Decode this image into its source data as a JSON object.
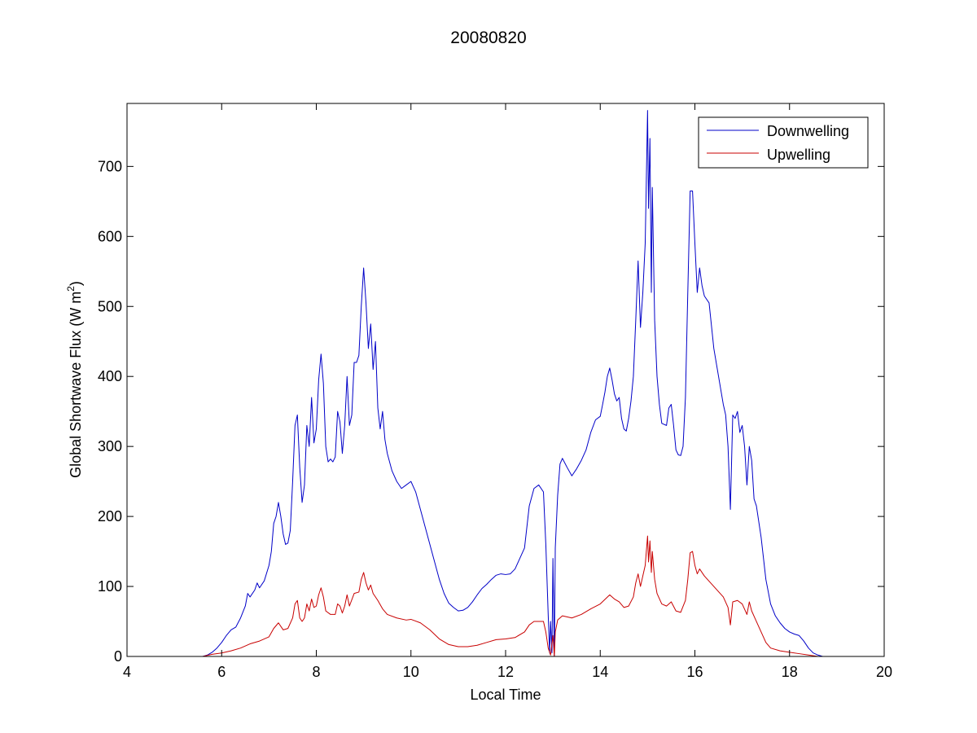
{
  "chart_data": {
    "type": "line",
    "title": "20080820",
    "xlabel": "Local Time",
    "ylabel_main": "Global Shortwave Flux (W m",
    "ylabel_sup": "2",
    "ylabel_close": ")",
    "xlim": [
      4,
      20
    ],
    "ylim": [
      0,
      790
    ],
    "xticks": [
      4,
      6,
      8,
      10,
      12,
      14,
      16,
      18,
      20
    ],
    "yticks": [
      0,
      100,
      200,
      300,
      400,
      500,
      600,
      700
    ],
    "grid": false,
    "legend_position": "top-right",
    "series": [
      {
        "name": "Downwelling",
        "color": "#0000c8",
        "points": [
          [
            4.2,
            0
          ],
          [
            5.6,
            0
          ],
          [
            5.7,
            2
          ],
          [
            5.8,
            6
          ],
          [
            5.9,
            12
          ],
          [
            6.0,
            20
          ],
          [
            6.1,
            30
          ],
          [
            6.2,
            38
          ],
          [
            6.3,
            42
          ],
          [
            6.4,
            55
          ],
          [
            6.5,
            72
          ],
          [
            6.55,
            90
          ],
          [
            6.6,
            85
          ],
          [
            6.7,
            95
          ],
          [
            6.75,
            105
          ],
          [
            6.8,
            98
          ],
          [
            6.9,
            108
          ],
          [
            7.0,
            130
          ],
          [
            7.05,
            150
          ],
          [
            7.1,
            190
          ],
          [
            7.15,
            200
          ],
          [
            7.2,
            220
          ],
          [
            7.25,
            200
          ],
          [
            7.3,
            175
          ],
          [
            7.35,
            160
          ],
          [
            7.4,
            162
          ],
          [
            7.45,
            180
          ],
          [
            7.5,
            250
          ],
          [
            7.55,
            330
          ],
          [
            7.6,
            345
          ],
          [
            7.65,
            270
          ],
          [
            7.7,
            220
          ],
          [
            7.75,
            245
          ],
          [
            7.8,
            330
          ],
          [
            7.85,
            300
          ],
          [
            7.9,
            370
          ],
          [
            7.95,
            305
          ],
          [
            8.0,
            325
          ],
          [
            8.05,
            395
          ],
          [
            8.1,
            432
          ],
          [
            8.15,
            390
          ],
          [
            8.2,
            300
          ],
          [
            8.25,
            278
          ],
          [
            8.3,
            282
          ],
          [
            8.35,
            278
          ],
          [
            8.4,
            285
          ],
          [
            8.45,
            350
          ],
          [
            8.5,
            335
          ],
          [
            8.55,
            290
          ],
          [
            8.6,
            330
          ],
          [
            8.65,
            400
          ],
          [
            8.7,
            330
          ],
          [
            8.75,
            345
          ],
          [
            8.8,
            420
          ],
          [
            8.85,
            420
          ],
          [
            8.9,
            430
          ],
          [
            8.95,
            500
          ],
          [
            9.0,
            555
          ],
          [
            9.05,
            505
          ],
          [
            9.1,
            440
          ],
          [
            9.15,
            475
          ],
          [
            9.2,
            410
          ],
          [
            9.25,
            450
          ],
          [
            9.3,
            355
          ],
          [
            9.35,
            325
          ],
          [
            9.4,
            350
          ],
          [
            9.45,
            310
          ],
          [
            9.5,
            290
          ],
          [
            9.6,
            265
          ],
          [
            9.7,
            250
          ],
          [
            9.8,
            240
          ],
          [
            9.9,
            245
          ],
          [
            10.0,
            250
          ],
          [
            10.1,
            235
          ],
          [
            10.2,
            210
          ],
          [
            10.3,
            185
          ],
          [
            10.4,
            160
          ],
          [
            10.5,
            135
          ],
          [
            10.6,
            110
          ],
          [
            10.7,
            90
          ],
          [
            10.8,
            76
          ],
          [
            10.9,
            70
          ],
          [
            11.0,
            65
          ],
          [
            11.1,
            66
          ],
          [
            11.2,
            70
          ],
          [
            11.3,
            78
          ],
          [
            11.4,
            88
          ],
          [
            11.5,
            97
          ],
          [
            11.6,
            103
          ],
          [
            11.7,
            110
          ],
          [
            11.8,
            116
          ],
          [
            11.9,
            118
          ],
          [
            12.0,
            117
          ],
          [
            12.1,
            118
          ],
          [
            12.2,
            125
          ],
          [
            12.3,
            140
          ],
          [
            12.4,
            155
          ],
          [
            12.5,
            215
          ],
          [
            12.6,
            240
          ],
          [
            12.7,
            245
          ],
          [
            12.8,
            235
          ],
          [
            12.85,
            160
          ],
          [
            12.9,
            60
          ],
          [
            12.93,
            5
          ],
          [
            12.95,
            50
          ],
          [
            12.98,
            5
          ],
          [
            13.0,
            140
          ],
          [
            13.03,
            0
          ],
          [
            13.05,
            155
          ],
          [
            13.1,
            230
          ],
          [
            13.15,
            275
          ],
          [
            13.2,
            283
          ],
          [
            13.3,
            270
          ],
          [
            13.4,
            258
          ],
          [
            13.5,
            268
          ],
          [
            13.6,
            280
          ],
          [
            13.7,
            295
          ],
          [
            13.8,
            320
          ],
          [
            13.9,
            338
          ],
          [
            14.0,
            343
          ],
          [
            14.05,
            360
          ],
          [
            14.1,
            378
          ],
          [
            14.15,
            400
          ],
          [
            14.2,
            412
          ],
          [
            14.25,
            395
          ],
          [
            14.3,
            375
          ],
          [
            14.35,
            365
          ],
          [
            14.4,
            370
          ],
          [
            14.45,
            340
          ],
          [
            14.5,
            325
          ],
          [
            14.55,
            322
          ],
          [
            14.6,
            340
          ],
          [
            14.65,
            365
          ],
          [
            14.7,
            400
          ],
          [
            14.75,
            480
          ],
          [
            14.8,
            565
          ],
          [
            14.85,
            470
          ],
          [
            14.9,
            520
          ],
          [
            14.95,
            590
          ],
          [
            15.0,
            780
          ],
          [
            15.02,
            640
          ],
          [
            15.05,
            740
          ],
          [
            15.08,
            520
          ],
          [
            15.1,
            670
          ],
          [
            15.15,
            480
          ],
          [
            15.2,
            400
          ],
          [
            15.25,
            360
          ],
          [
            15.3,
            333
          ],
          [
            15.4,
            330
          ],
          [
            15.45,
            355
          ],
          [
            15.5,
            360
          ],
          [
            15.55,
            330
          ],
          [
            15.6,
            295
          ],
          [
            15.65,
            288
          ],
          [
            15.7,
            287
          ],
          [
            15.75,
            300
          ],
          [
            15.8,
            370
          ],
          [
            15.85,
            520
          ],
          [
            15.9,
            665
          ],
          [
            15.95,
            665
          ],
          [
            16.0,
            590
          ],
          [
            16.05,
            520
          ],
          [
            16.1,
            555
          ],
          [
            16.15,
            530
          ],
          [
            16.2,
            515
          ],
          [
            16.3,
            505
          ],
          [
            16.4,
            440
          ],
          [
            16.5,
            400
          ],
          [
            16.6,
            360
          ],
          [
            16.65,
            345
          ],
          [
            16.7,
            300
          ],
          [
            16.75,
            210
          ],
          [
            16.8,
            345
          ],
          [
            16.85,
            340
          ],
          [
            16.9,
            350
          ],
          [
            16.95,
            320
          ],
          [
            17.0,
            330
          ],
          [
            17.05,
            300
          ],
          [
            17.1,
            245
          ],
          [
            17.15,
            300
          ],
          [
            17.2,
            280
          ],
          [
            17.25,
            225
          ],
          [
            17.3,
            215
          ],
          [
            17.4,
            170
          ],
          [
            17.5,
            110
          ],
          [
            17.6,
            75
          ],
          [
            17.7,
            58
          ],
          [
            17.8,
            48
          ],
          [
            17.9,
            40
          ],
          [
            18.0,
            35
          ],
          [
            18.1,
            32
          ],
          [
            18.2,
            30
          ],
          [
            18.3,
            22
          ],
          [
            18.4,
            12
          ],
          [
            18.5,
            5
          ],
          [
            18.6,
            2
          ],
          [
            18.7,
            0
          ],
          [
            18.9,
            0
          ]
        ]
      },
      {
        "name": "Upwelling",
        "color": "#c80000",
        "points": [
          [
            4.2,
            0
          ],
          [
            5.6,
            0
          ],
          [
            5.8,
            3
          ],
          [
            6.0,
            5
          ],
          [
            6.2,
            8
          ],
          [
            6.4,
            12
          ],
          [
            6.6,
            18
          ],
          [
            6.8,
            22
          ],
          [
            7.0,
            28
          ],
          [
            7.1,
            40
          ],
          [
            7.2,
            48
          ],
          [
            7.3,
            38
          ],
          [
            7.4,
            40
          ],
          [
            7.5,
            55
          ],
          [
            7.55,
            75
          ],
          [
            7.6,
            80
          ],
          [
            7.65,
            55
          ],
          [
            7.7,
            50
          ],
          [
            7.75,
            55
          ],
          [
            7.8,
            75
          ],
          [
            7.85,
            65
          ],
          [
            7.9,
            82
          ],
          [
            7.95,
            70
          ],
          [
            8.0,
            72
          ],
          [
            8.05,
            88
          ],
          [
            8.1,
            98
          ],
          [
            8.15,
            85
          ],
          [
            8.2,
            65
          ],
          [
            8.3,
            60
          ],
          [
            8.4,
            60
          ],
          [
            8.45,
            75
          ],
          [
            8.5,
            72
          ],
          [
            8.55,
            62
          ],
          [
            8.6,
            72
          ],
          [
            8.65,
            88
          ],
          [
            8.7,
            72
          ],
          [
            8.8,
            90
          ],
          [
            8.9,
            92
          ],
          [
            8.95,
            110
          ],
          [
            9.0,
            120
          ],
          [
            9.05,
            105
          ],
          [
            9.1,
            95
          ],
          [
            9.15,
            102
          ],
          [
            9.2,
            90
          ],
          [
            9.3,
            80
          ],
          [
            9.4,
            68
          ],
          [
            9.5,
            60
          ],
          [
            9.7,
            55
          ],
          [
            9.9,
            52
          ],
          [
            10.0,
            53
          ],
          [
            10.2,
            48
          ],
          [
            10.4,
            38
          ],
          [
            10.6,
            25
          ],
          [
            10.8,
            17
          ],
          [
            11.0,
            14
          ],
          [
            11.2,
            14
          ],
          [
            11.4,
            16
          ],
          [
            11.6,
            20
          ],
          [
            11.8,
            24
          ],
          [
            12.0,
            25
          ],
          [
            12.2,
            27
          ],
          [
            12.4,
            35
          ],
          [
            12.5,
            45
          ],
          [
            12.6,
            50
          ],
          [
            12.8,
            50
          ],
          [
            12.85,
            35
          ],
          [
            12.9,
            12
          ],
          [
            12.95,
            2
          ],
          [
            13.0,
            30
          ],
          [
            13.03,
            0
          ],
          [
            13.05,
            35
          ],
          [
            13.1,
            52
          ],
          [
            13.2,
            58
          ],
          [
            13.4,
            55
          ],
          [
            13.6,
            60
          ],
          [
            13.8,
            68
          ],
          [
            14.0,
            75
          ],
          [
            14.2,
            88
          ],
          [
            14.3,
            82
          ],
          [
            14.4,
            78
          ],
          [
            14.5,
            70
          ],
          [
            14.6,
            72
          ],
          [
            14.7,
            85
          ],
          [
            14.75,
            105
          ],
          [
            14.8,
            118
          ],
          [
            14.85,
            100
          ],
          [
            14.9,
            115
          ],
          [
            14.95,
            130
          ],
          [
            15.0,
            172
          ],
          [
            15.02,
            135
          ],
          [
            15.05,
            165
          ],
          [
            15.08,
            120
          ],
          [
            15.1,
            150
          ],
          [
            15.15,
            110
          ],
          [
            15.2,
            90
          ],
          [
            15.3,
            75
          ],
          [
            15.4,
            72
          ],
          [
            15.5,
            78
          ],
          [
            15.6,
            65
          ],
          [
            15.7,
            63
          ],
          [
            15.8,
            80
          ],
          [
            15.85,
            110
          ],
          [
            15.9,
            148
          ],
          [
            15.95,
            150
          ],
          [
            16.0,
            130
          ],
          [
            16.05,
            118
          ],
          [
            16.1,
            125
          ],
          [
            16.2,
            115
          ],
          [
            16.4,
            100
          ],
          [
            16.6,
            85
          ],
          [
            16.7,
            70
          ],
          [
            16.75,
            45
          ],
          [
            16.8,
            78
          ],
          [
            16.9,
            80
          ],
          [
            17.0,
            75
          ],
          [
            17.1,
            60
          ],
          [
            17.15,
            78
          ],
          [
            17.2,
            65
          ],
          [
            17.3,
            50
          ],
          [
            17.4,
            35
          ],
          [
            17.5,
            20
          ],
          [
            17.6,
            12
          ],
          [
            17.8,
            8
          ],
          [
            18.0,
            6
          ],
          [
            18.2,
            4
          ],
          [
            18.4,
            2
          ],
          [
            18.6,
            0
          ],
          [
            18.9,
            0
          ]
        ]
      }
    ]
  }
}
